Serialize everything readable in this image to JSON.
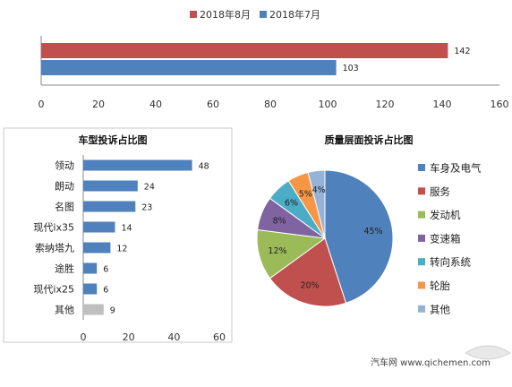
{
  "colors": {
    "aug": "#c0504d",
    "jul": "#4f81bd",
    "other_bar": "#bfbfbf",
    "axis": "#888888",
    "panel_border": "#c8c8c8"
  },
  "chart_data": [
    {
      "type": "bar",
      "orientation": "horizontal",
      "categories": [
        ""
      ],
      "series": [
        {
          "name": "2018年8月",
          "values": [
            142
          ],
          "color": "#c0504d"
        },
        {
          "name": "2018年7月",
          "values": [
            103
          ],
          "color": "#4f81bd"
        }
      ],
      "xlim": [
        0,
        160
      ],
      "xticks": [
        "0",
        "20",
        "40",
        "60",
        "80",
        "100",
        "120",
        "140",
        "160"
      ],
      "legend": "top-center",
      "data_labels": [
        "142",
        "103"
      ]
    },
    {
      "type": "bar",
      "orientation": "horizontal",
      "title": "车型投诉占比图",
      "categories": [
        "领动",
        "朗动",
        "名图",
        "现代ix35",
        "索纳塔九",
        "途胜",
        "现代ix25",
        "其他"
      ],
      "values": [
        48,
        24,
        23,
        14,
        12,
        6,
        6,
        9
      ],
      "xlim": [
        0,
        60
      ],
      "xticks": [
        "0",
        "20",
        "40",
        "60"
      ],
      "data_labels": [
        "48",
        "24",
        "23",
        "14",
        "12",
        "6",
        "6",
        "9"
      ]
    },
    {
      "type": "pie",
      "title": "质量层面投诉占比图",
      "labels": [
        "车身及电气",
        "服务",
        "发动机",
        "变速箱",
        "转向系统",
        "轮胎",
        "其他"
      ],
      "values": [
        45,
        20,
        12,
        8,
        6,
        5,
        4
      ],
      "value_labels": [
        "45%",
        "20%",
        "12%",
        "8%",
        "6%",
        "5%",
        "4%"
      ],
      "colors": [
        "#4f81bd",
        "#c0504d",
        "#9bbb59",
        "#8064a2",
        "#4bacc6",
        "#f79646",
        "#95b3d7"
      ],
      "legend": "right"
    }
  ],
  "watermark": "汽车网 www.qichemen.com"
}
